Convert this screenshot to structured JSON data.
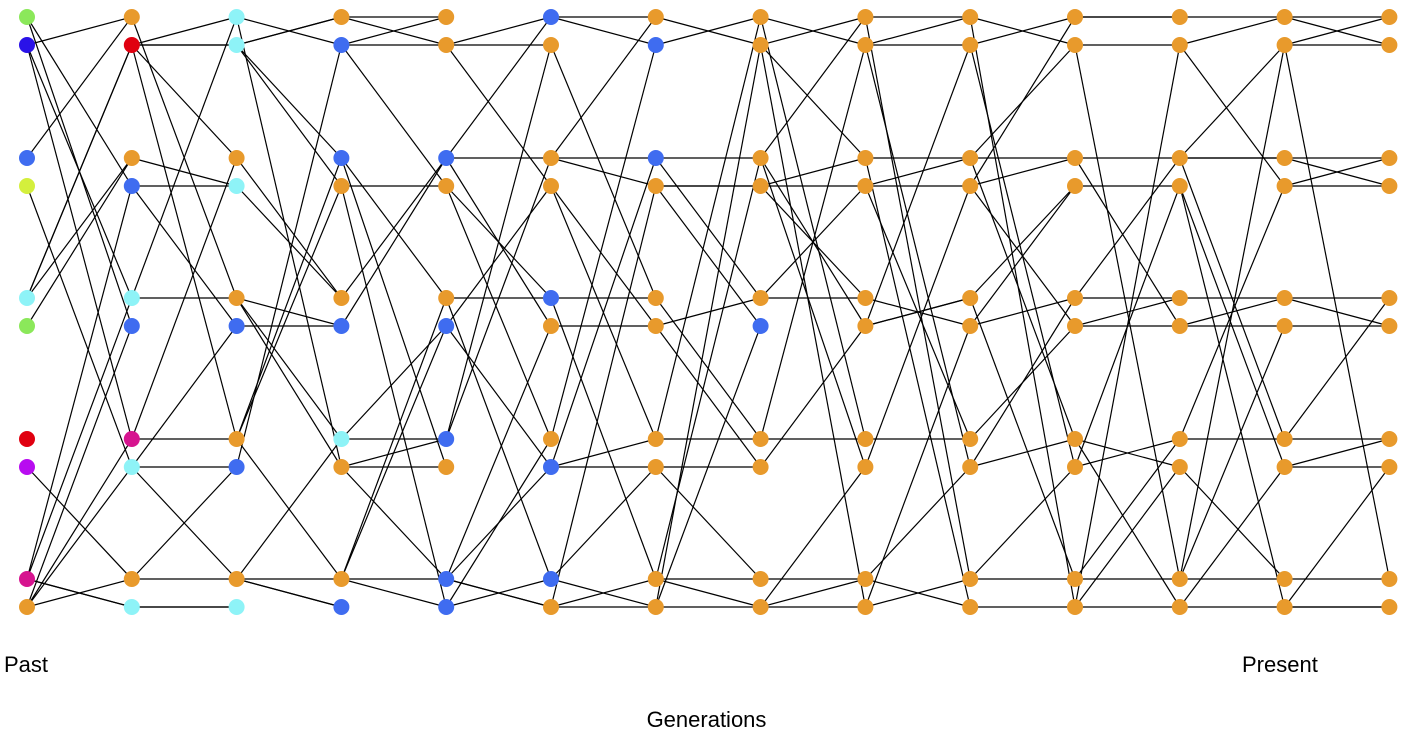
{
  "labels": {
    "past": "Past",
    "present": "Present",
    "axis": "Generations"
  },
  "palette": {
    "orange": "#E89A2C",
    "blue": "#3F6CF0",
    "cyan": "#8EF3F7",
    "green": "#8BE85A",
    "navy": "#2A12E8",
    "lime": "#D4EF3C",
    "red": "#E00010",
    "purple": "#B80CF0",
    "magenta": "#D6148F"
  },
  "generations": 14,
  "rows": 12,
  "nodes": [
    [
      "green",
      "navy",
      "blue",
      "lime",
      "cyan",
      "green",
      "red",
      "purple",
      "magenta",
      "orange"
    ],
    [
      "orange",
      "red",
      "orange",
      "blue",
      "cyan",
      "blue",
      "magenta",
      "cyan",
      "orange",
      "cyan"
    ],
    [
      "cyan",
      "cyan",
      "orange",
      "cyan",
      "orange",
      "blue",
      "orange",
      "blue",
      "orange",
      "cyan"
    ],
    [
      "orange",
      "blue",
      "blue",
      "orange",
      "orange",
      "blue",
      "cyan",
      "orange",
      "orange",
      "blue"
    ],
    [
      "orange",
      "orange",
      "blue",
      "orange",
      "orange",
      "blue",
      "blue",
      "orange",
      "blue",
      "blue"
    ],
    [
      "blue",
      "orange",
      "orange",
      "orange",
      "blue",
      "orange",
      "orange",
      "blue",
      "blue",
      "orange"
    ],
    [
      "orange",
      "blue",
      "blue",
      "orange",
      "orange",
      "orange",
      "orange",
      "orange",
      "orange",
      "orange"
    ],
    [
      "orange",
      "orange",
      "orange",
      "orange",
      "orange",
      "blue",
      "orange",
      "orange",
      "orange",
      "orange"
    ],
    [
      "orange",
      "orange",
      "orange",
      "orange",
      "orange",
      "orange",
      "orange",
      "orange",
      "orange",
      "orange"
    ],
    [
      "orange",
      "orange",
      "orange",
      "orange",
      "orange",
      "orange",
      "orange",
      "orange",
      "orange",
      "orange"
    ],
    [
      "orange",
      "orange",
      "orange",
      "orange",
      "orange",
      "orange",
      "orange",
      "orange",
      "orange",
      "orange"
    ],
    [
      "orange",
      "orange",
      "orange",
      "orange",
      "orange",
      "orange",
      "orange",
      "orange",
      "orange",
      "orange"
    ],
    [
      "orange",
      "orange",
      "orange",
      "orange",
      "orange",
      "orange",
      "orange",
      "orange",
      "orange",
      "orange"
    ],
    [
      "orange",
      "orange",
      "orange",
      "orange",
      "orange",
      "orange",
      "orange",
      "orange",
      "orange",
      "orange"
    ]
  ],
  "slots": [
    [
      0,
      1,
      4,
      5,
      8,
      9,
      12,
      13,
      16,
      17
    ],
    [
      0,
      1,
      4,
      5,
      8,
      9,
      12,
      13,
      16,
      17
    ],
    [
      0,
      1,
      4,
      5,
      8,
      9,
      12,
      13,
      16,
      17
    ],
    [
      0,
      1,
      4,
      5,
      8,
      9,
      12,
      13,
      16,
      17
    ],
    [
      0,
      1,
      4,
      5,
      8,
      9,
      12,
      13,
      16,
      17
    ],
    [
      0,
      1,
      4,
      5,
      8,
      9,
      12,
      13,
      16,
      17
    ],
    [
      0,
      1,
      4,
      5,
      8,
      9,
      12,
      13,
      16,
      17
    ],
    [
      0,
      1,
      4,
      5,
      8,
      9,
      12,
      13,
      16,
      17
    ],
    [
      0,
      1,
      4,
      5,
      8,
      9,
      12,
      13,
      16,
      17
    ],
    [
      0,
      1,
      4,
      5,
      8,
      9,
      12,
      13,
      16,
      17
    ],
    [
      0,
      1,
      4,
      5,
      8,
      9,
      12,
      13,
      16,
      17
    ],
    [
      0,
      1,
      4,
      5,
      8,
      9,
      12,
      13,
      16,
      17
    ],
    [
      0,
      1,
      4,
      5,
      8,
      9,
      12,
      13,
      16,
      17
    ],
    [
      0,
      1,
      4,
      5,
      8,
      9,
      12,
      13,
      16,
      17
    ]
  ],
  "edges": [
    [
      [
        2,
        1
      ],
      [
        4,
        4
      ],
      [
        4,
        5
      ],
      [
        8,
        0
      ],
      [
        8,
        1
      ],
      [
        9,
        0
      ],
      [
        9,
        1
      ],
      [
        9,
        3
      ],
      [
        9,
        7
      ],
      [
        8,
        8
      ]
    ],
    [
      [
        1,
        4
      ],
      [
        1,
        1
      ],
      [
        1,
        6
      ],
      [
        3,
        2
      ],
      [
        4,
        0
      ],
      [
        3,
        7
      ],
      [
        6,
        1
      ],
      [
        7,
        8
      ],
      [
        8,
        7
      ],
      [
        9,
        9
      ]
    ],
    [
      [
        1,
        1
      ],
      [
        0,
        7
      ],
      [
        1,
        6
      ],
      [
        6,
        1
      ],
      [
        3,
        2
      ],
      [
        5,
        4
      ],
      [
        4,
        8
      ],
      [
        4,
        0
      ],
      [
        6,
        8
      ],
      [
        8,
        8
      ]
    ],
    [
      [
        0,
        1
      ],
      [
        1,
        0
      ],
      [
        4,
        5
      ],
      [
        3,
        1
      ],
      [
        2,
        8
      ],
      [
        8,
        6
      ],
      [
        6,
        7
      ],
      [
        7,
        2
      ],
      [
        7,
        8
      ],
      [
        8,
        3
      ]
    ],
    [
      [
        1,
        2
      ],
      [
        1,
        6
      ],
      [
        6,
        2
      ],
      [
        5,
        1
      ],
      [
        4,
        3
      ],
      [
        2,
        8
      ],
      [
        3,
        9
      ],
      [
        5,
        8
      ],
      [
        9,
        4
      ],
      [
        8,
        8
      ]
    ],
    [
      [
        2,
        0
      ],
      [
        0,
        6
      ],
      [
        7,
        2
      ],
      [
        2,
        9
      ],
      [
        4,
        1
      ],
      [
        5,
        3
      ],
      [
        3,
        7
      ],
      [
        7,
        8
      ],
      [
        4,
        9
      ],
      [
        9,
        8
      ]
    ],
    [
      [
        6,
        1
      ],
      [
        0,
        9
      ],
      [
        2,
        8
      ],
      [
        3,
        3
      ],
      [
        2,
        5
      ],
      [
        3,
        9
      ],
      [
        4,
        6
      ],
      [
        5,
        7
      ],
      [
        7,
        8
      ],
      [
        8,
        9
      ]
    ],
    [
      [
        1,
        2
      ],
      [
        0,
        6
      ],
      [
        3,
        1
      ],
      [
        3,
        4
      ],
      [
        4,
        3
      ],
      [
        2,
        7
      ],
      [
        6,
        0
      ],
      [
        2,
        9
      ],
      [
        8,
        9
      ],
      [
        9,
        1
      ]
    ],
    [
      [
        0,
        1
      ],
      [
        1,
        5
      ],
      [
        3,
        2
      ],
      [
        3,
        7
      ],
      [
        5,
        5
      ],
      [
        4,
        9
      ],
      [
        6,
        3
      ],
      [
        1,
        8
      ],
      [
        9,
        0
      ],
      [
        8,
        2
      ]
    ],
    [
      [
        1,
        3
      ],
      [
        2,
        0
      ],
      [
        3,
        2
      ],
      [
        4,
        5
      ],
      [
        5,
        7
      ],
      [
        6,
        3
      ],
      [
        7,
        2
      ],
      [
        1,
        8
      ],
      [
        8,
        4
      ],
      [
        9,
        0
      ]
    ],
    [
      [
        0,
        0
      ],
      [
        1,
        9
      ],
      [
        2,
        4
      ],
      [
        3,
        7
      ],
      [
        4,
        5
      ],
      [
        5,
        2
      ],
      [
        7,
        8
      ],
      [
        6,
        9
      ],
      [
        8,
        1
      ],
      [
        9,
        6
      ]
    ],
    [
      [
        1,
        0
      ],
      [
        2,
        8
      ],
      [
        2,
        2
      ],
      [
        1,
        6
      ],
      [
        4,
        5
      ],
      [
        5,
        8
      ],
      [
        6,
        2
      ],
      [
        3,
        9
      ],
      [
        8,
        7
      ],
      [
        9,
        3
      ]
    ],
    [
      [
        0,
        1
      ],
      [
        1,
        0
      ],
      [
        2,
        3
      ],
      [
        3,
        2
      ],
      [
        4,
        6
      ],
      [
        5,
        4
      ],
      [
        6,
        7
      ],
      [
        7,
        9
      ],
      [
        8,
        1
      ],
      [
        9,
        9
      ]
    ]
  ]
}
